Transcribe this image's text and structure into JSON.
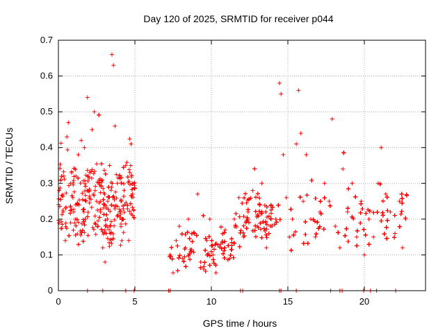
{
  "chart_data": {
    "type": "scatter",
    "title": "Day 120 of 2025, SRMTID for receiver p044",
    "xlabel": "GPS time / hours",
    "ylabel": "SRMTID / TECUs",
    "xlim": [
      0,
      24
    ],
    "ylim": [
      0,
      0.7
    ],
    "xticks": [
      0,
      5,
      10,
      15,
      20
    ],
    "xtick_labels": [
      "0",
      "5",
      "10",
      "15",
      "20"
    ],
    "yticks": [
      0,
      0.1,
      0.2,
      0.3,
      0.4,
      0.5,
      0.6,
      0.7
    ],
    "ytick_labels": [
      "0",
      "0.1",
      "0.2",
      "0.3",
      "0.4",
      "0.5",
      "0.6",
      "0.7"
    ],
    "grid": true,
    "marker": "+",
    "series": [
      {
        "name": "SRMTID",
        "color": "#ff0000",
        "segments": [
          {
            "x_start": 0.0,
            "x_end": 5.0,
            "base": 0.24,
            "spread": 0.1
          },
          {
            "x_start": 7.2,
            "x_end": 11.5,
            "base": 0.11,
            "spread": 0.05
          },
          {
            "x_start": 11.5,
            "x_end": 14.0,
            "base": 0.2,
            "spread": 0.06
          },
          {
            "x_start": 14.0,
            "x_end": 22.8,
            "base": 0.2,
            "spread": 0.08
          }
        ],
        "points": [
          [
            0.05,
            0.28
          ],
          [
            0.15,
            0.31
          ],
          [
            0.3,
            0.22
          ],
          [
            0.45,
            0.14
          ],
          [
            0.55,
            0.43
          ],
          [
            0.65,
            0.47
          ],
          [
            0.8,
            0.3
          ],
          [
            0.95,
            0.26
          ],
          [
            1.1,
            0.2
          ],
          [
            1.3,
            0.38
          ],
          [
            1.5,
            0.42
          ],
          [
            1.7,
            0.4
          ],
          [
            1.9,
            0.54
          ],
          [
            2.05,
            0.33
          ],
          [
            2.2,
            0.45
          ],
          [
            2.35,
            0.5
          ],
          [
            2.5,
            0.25
          ],
          [
            2.6,
            0.18
          ],
          [
            2.75,
            0.22
          ],
          [
            2.9,
            0.12
          ],
          [
            3.05,
            0.08
          ],
          [
            3.2,
            0.2
          ],
          [
            3.35,
            0.35
          ],
          [
            3.5,
            0.66
          ],
          [
            3.6,
            0.63
          ],
          [
            3.7,
            0.46
          ],
          [
            3.85,
            0.3
          ],
          [
            4.0,
            0.22
          ],
          [
            4.2,
            0.2
          ],
          [
            4.4,
            0.35
          ],
          [
            4.6,
            0.14
          ],
          [
            4.75,
            0.41
          ],
          [
            4.85,
            0.27
          ],
          [
            7.3,
            0.1
          ],
          [
            7.5,
            0.05
          ],
          [
            7.7,
            0.14
          ],
          [
            7.9,
            0.18
          ],
          [
            8.1,
            0.09
          ],
          [
            8.3,
            0.12
          ],
          [
            8.5,
            0.2
          ],
          [
            8.7,
            0.11
          ],
          [
            8.9,
            0.16
          ],
          [
            9.1,
            0.27
          ],
          [
            9.3,
            0.08
          ],
          [
            9.5,
            0.06
          ],
          [
            9.7,
            0.14
          ],
          [
            9.9,
            0.2
          ],
          [
            10.1,
            0.1
          ],
          [
            10.3,
            0.05
          ],
          [
            10.6,
            0.13
          ],
          [
            10.9,
            0.17
          ],
          [
            11.2,
            0.09
          ],
          [
            11.5,
            0.2
          ],
          [
            11.8,
            0.26
          ],
          [
            12.1,
            0.15
          ],
          [
            12.4,
            0.22
          ],
          [
            12.7,
            0.28
          ],
          [
            13.0,
            0.18
          ],
          [
            13.3,
            0.3
          ],
          [
            13.6,
            0.12
          ],
          [
            13.9,
            0.24
          ],
          [
            14.2,
            0.2
          ],
          [
            14.45,
            0.58
          ],
          [
            14.55,
            0.55
          ],
          [
            14.7,
            0.38
          ],
          [
            14.9,
            0.26
          ],
          [
            15.1,
            0.15
          ],
          [
            15.3,
            0.2
          ],
          [
            15.55,
            0.41
          ],
          [
            15.7,
            0.56
          ],
          [
            15.85,
            0.44
          ],
          [
            16.0,
            0.25
          ],
          [
            16.2,
            0.38
          ],
          [
            16.5,
            0.2
          ],
          [
            16.8,
            0.15
          ],
          [
            17.1,
            0.22
          ],
          [
            17.4,
            0.3
          ],
          [
            17.7,
            0.25
          ],
          [
            17.9,
            0.48
          ],
          [
            18.1,
            0.18
          ],
          [
            18.4,
            0.12
          ],
          [
            18.6,
            0.34
          ],
          [
            18.9,
            0.22
          ],
          [
            19.2,
            0.3
          ],
          [
            19.5,
            0.15
          ],
          [
            19.8,
            0.25
          ],
          [
            20.0,
            0.1
          ],
          [
            20.3,
            0.2
          ],
          [
            20.6,
            0.15
          ],
          [
            20.9,
            0.3
          ],
          [
            21.1,
            0.4
          ],
          [
            21.4,
            0.27
          ],
          [
            21.7,
            0.22
          ],
          [
            22.0,
            0.16
          ],
          [
            22.3,
            0.25
          ],
          [
            22.5,
            0.12
          ],
          [
            22.7,
            0.2
          ]
        ],
        "zero_points": [
          1.9,
          2.9,
          4.4,
          4.95,
          7.2,
          7.3,
          11.9,
          12.05,
          14.45,
          14.55,
          15.55,
          17.8,
          18.4,
          18.55,
          19.95,
          20.4,
          20.8,
          22.05
        ]
      }
    ]
  }
}
